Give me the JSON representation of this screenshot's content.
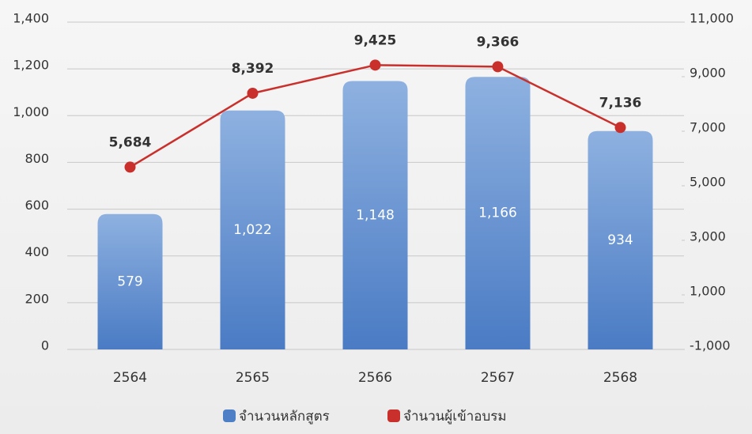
{
  "chart_data": {
    "type": "bar",
    "categories": [
      "2564",
      "2565",
      "2566",
      "2567",
      "2568"
    ],
    "series": [
      {
        "name": "จำนวนหลักสูตร",
        "type": "bar",
        "color": "#4d7fc6",
        "values": [
          579,
          1022,
          1148,
          1166,
          934
        ],
        "value_labels": [
          "579",
          "1,022",
          "1,148",
          "1,166",
          "934"
        ]
      },
      {
        "name": "จำนวนผู้เข้าอบรม",
        "type": "line",
        "axis": "y2",
        "color": "#c9302c",
        "values": [
          5684,
          8392,
          9425,
          9366,
          7136
        ],
        "value_labels": [
          "5,684",
          "8,392",
          "9,425",
          "9,366",
          "7,136"
        ]
      }
    ],
    "ylim": [
      0,
      1400
    ],
    "yticks": [
      0,
      200,
      400,
      600,
      800,
      {
        "value": 1000,
        "label": "1,000"
      },
      {
        "value": 1200,
        "label": "1,200"
      },
      {
        "value": 1400,
        "label": "1,400"
      }
    ],
    "y2lim": [
      -1000,
      11000
    ],
    "y2ticks": [
      {
        "value": -1000,
        "label": "-1,000"
      },
      {
        "value": 1000,
        "label": "1,000"
      },
      {
        "value": 3000,
        "label": "3,000"
      },
      {
        "value": 5000,
        "label": "5,000"
      },
      {
        "value": 7000,
        "label": "7,000"
      },
      {
        "value": 9000,
        "label": "9,000"
      },
      {
        "value": 11000,
        "label": "11,000"
      }
    ],
    "grid": true,
    "legend": "bottom"
  }
}
